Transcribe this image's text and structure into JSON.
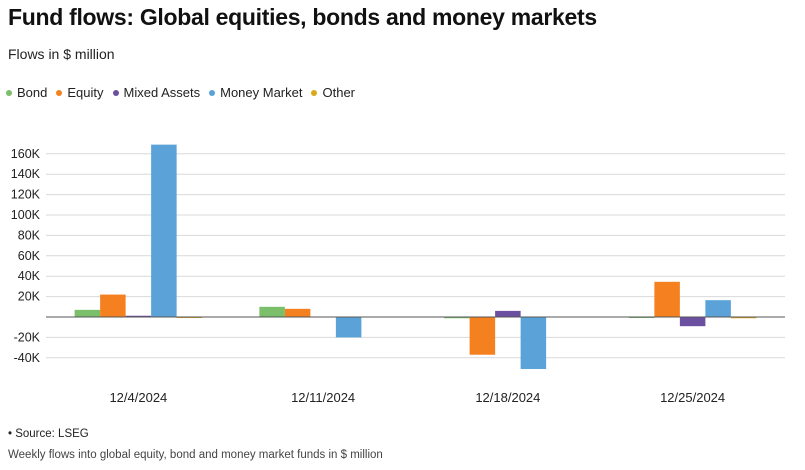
{
  "header": {
    "title": "Fund flows: Global equities, bonds and money markets",
    "subtitle": "Flows in $ million"
  },
  "footer": {
    "source": "• Source: LSEG",
    "caption": "Weekly flows into global equity, bond and money market funds in $ million"
  },
  "chart_data": {
    "type": "bar",
    "title": "Fund flows: Global equities, bonds and money markets",
    "subtitle": "Flows in $ million",
    "xlabel": "",
    "ylabel": "",
    "categories": [
      "12/4/2024",
      "12/11/2024",
      "12/18/2024",
      "12/25/2024"
    ],
    "series": [
      {
        "name": "Bond",
        "color": "#7cbf6a",
        "values": [
          7000,
          10000,
          -1000,
          -500
        ]
      },
      {
        "name": "Equity",
        "color": "#f5801f",
        "values": [
          22000,
          8000,
          -37000,
          34500
        ]
      },
      {
        "name": "Mixed Assets",
        "color": "#6b4fa0",
        "values": [
          1000,
          0,
          6000,
          -9000
        ]
      },
      {
        "name": "Money Market",
        "color": "#5aa2d8",
        "values": [
          169000,
          -20000,
          -51000,
          16500
        ]
      },
      {
        "name": "Other",
        "color": "#d9a81b",
        "values": [
          -500,
          0,
          0,
          -1000
        ]
      }
    ],
    "ylim": [
      -55000,
      175000
    ],
    "yticks": [
      -40000,
      -20000,
      20000,
      40000,
      60000,
      80000,
      100000,
      120000,
      140000,
      160000
    ],
    "ytick_labels": [
      "-40K",
      "-20K",
      "20K",
      "40K",
      "60K",
      "80K",
      "100K",
      "120K",
      "140K",
      "160K"
    ],
    "grid": true,
    "legend_position": "top-left"
  }
}
